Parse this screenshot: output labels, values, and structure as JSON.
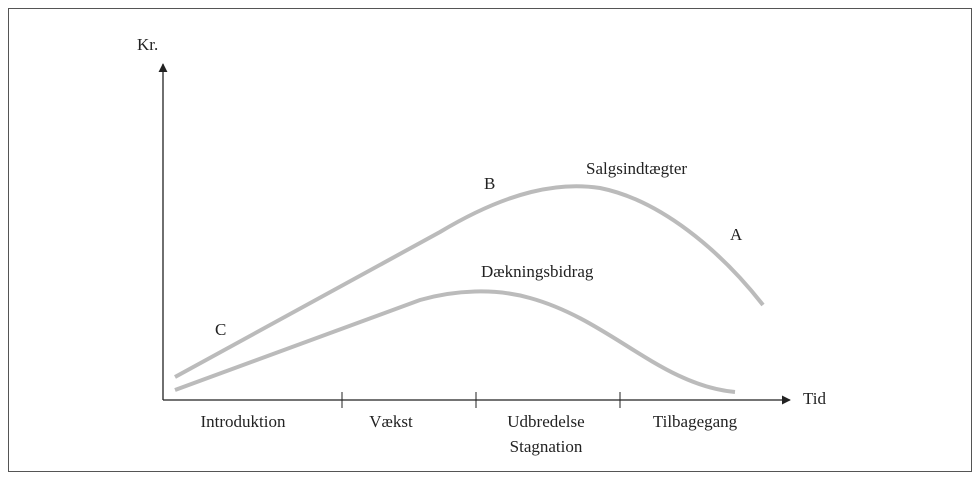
{
  "axes": {
    "y_label": "Kr.",
    "x_label": "Tid"
  },
  "curves": [
    {
      "label": "Salgsindtægter"
    },
    {
      "label": "Dækningsbidrag"
    }
  ],
  "points": [
    "A",
    "B",
    "C"
  ],
  "phases": [
    [
      "Introduktion"
    ],
    [
      "Vækst"
    ],
    [
      "Udbredelse",
      "Stagnation"
    ],
    [
      "Tilbagegang"
    ]
  ]
}
